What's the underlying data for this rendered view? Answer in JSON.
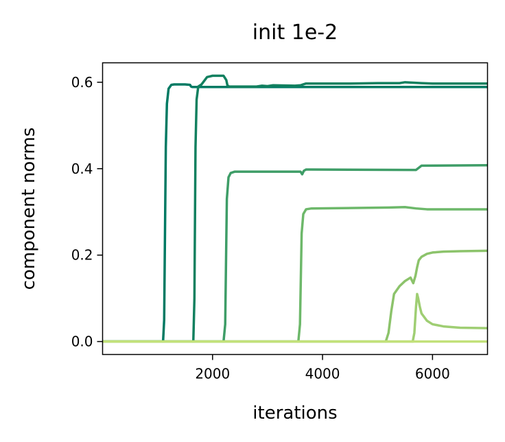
{
  "chart_data": {
    "type": "line",
    "title": "init 1e-2",
    "xlabel": "iterations",
    "ylabel": "component norms",
    "xlim": [
      0,
      7000
    ],
    "ylim": [
      -0.03,
      0.645
    ],
    "xticks": [
      2000,
      4000,
      6000
    ],
    "xtick_labels": [
      "2000",
      "4000",
      "6000"
    ],
    "yticks": [
      0.0,
      0.2,
      0.4,
      0.6
    ],
    "ytick_labels": [
      "0.0",
      "0.2",
      "0.4",
      "0.6"
    ],
    "grid": false,
    "legend": "none",
    "series": [
      {
        "color": "#007a63",
        "x": [
          0,
          1100,
          1120,
          1150,
          1170,
          1200,
          1250,
          1300,
          1500,
          1590,
          1610,
          1630,
          1680,
          7000
        ],
        "y": [
          0.0,
          0.0,
          0.05,
          0.45,
          0.55,
          0.585,
          0.594,
          0.595,
          0.595,
          0.594,
          0.59,
          0.589,
          0.589,
          0.589
        ]
      },
      {
        "color": "#12805f",
        "x": [
          0,
          1650,
          1670,
          1690,
          1710,
          1740,
          1800,
          1900,
          2000,
          2200,
          2250,
          2270,
          2300,
          2800,
          2900,
          3000,
          3100,
          3500,
          3600,
          3650,
          3700,
          3800,
          4500,
          5000,
          5400,
          5500,
          5800,
          6000,
          6500,
          7000
        ],
        "y": [
          0.0,
          0.0,
          0.1,
          0.45,
          0.56,
          0.59,
          0.595,
          0.612,
          0.615,
          0.615,
          0.605,
          0.593,
          0.59,
          0.59,
          0.592,
          0.591,
          0.593,
          0.592,
          0.593,
          0.595,
          0.597,
          0.597,
          0.597,
          0.598,
          0.598,
          0.6,
          0.598,
          0.597,
          0.597,
          0.597
        ]
      },
      {
        "color": "#3e9d67",
        "x": [
          0,
          2200,
          2230,
          2260,
          2290,
          2330,
          2400,
          3600,
          3630,
          3660,
          3700,
          3800,
          5700,
          5800,
          7000
        ],
        "y": [
          0.0,
          0.0,
          0.04,
          0.33,
          0.38,
          0.39,
          0.393,
          0.393,
          0.387,
          0.395,
          0.398,
          0.398,
          0.397,
          0.407,
          0.408
        ]
      },
      {
        "color": "#6db86a",
        "x": [
          0,
          3560,
          3590,
          3620,
          3650,
          3700,
          3800,
          5200,
          5500,
          5700,
          5900,
          7000
        ],
        "y": [
          0.0,
          0.0,
          0.04,
          0.25,
          0.295,
          0.306,
          0.308,
          0.31,
          0.311,
          0.308,
          0.306,
          0.306
        ]
      },
      {
        "color": "#8cc36b",
        "x": [
          0,
          5150,
          5200,
          5250,
          5300,
          5400,
          5500,
          5600,
          5650,
          5690,
          5720,
          5750,
          5800,
          5900,
          6000,
          6200,
          6500,
          7000
        ],
        "y": [
          0.0,
          0.0,
          0.02,
          0.07,
          0.11,
          0.128,
          0.14,
          0.148,
          0.135,
          0.152,
          0.172,
          0.188,
          0.196,
          0.203,
          0.206,
          0.208,
          0.209,
          0.21
        ]
      },
      {
        "color": "#9fce73",
        "x": [
          0,
          5640,
          5670,
          5700,
          5720,
          5740,
          5770,
          5800,
          5900,
          6000,
          6200,
          6500,
          7000
        ],
        "y": [
          0.0,
          0.0,
          0.02,
          0.08,
          0.11,
          0.1,
          0.08,
          0.065,
          0.048,
          0.04,
          0.035,
          0.032,
          0.031
        ]
      },
      {
        "color": "#c2e17a",
        "x": [
          0,
          7000
        ],
        "y": [
          0.0,
          0.0
        ]
      }
    ]
  }
}
